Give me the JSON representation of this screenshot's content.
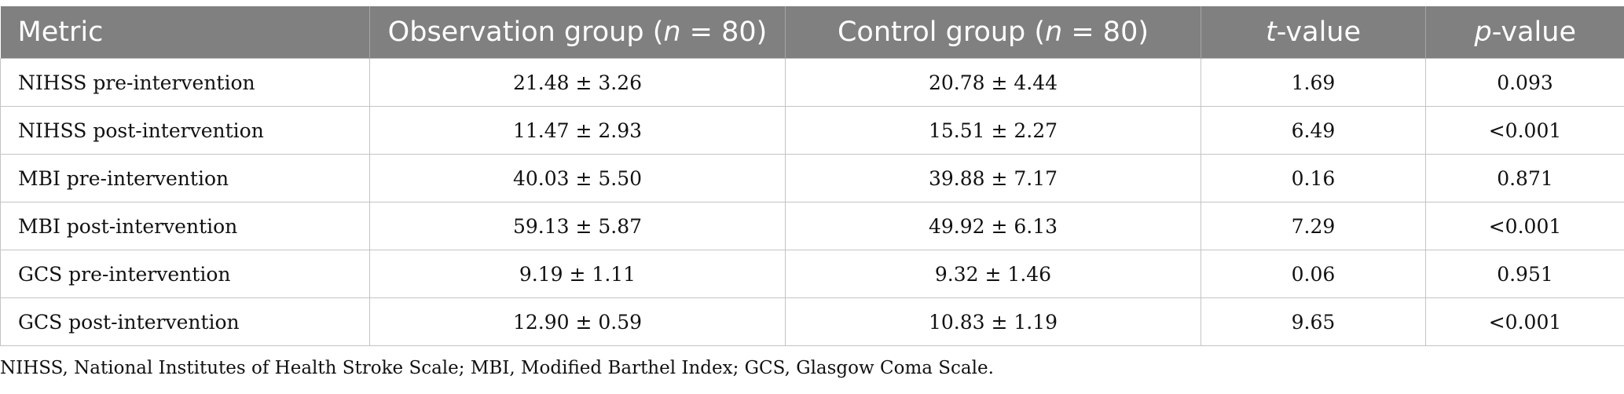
{
  "table": {
    "headers": [
      {
        "pre": "Metric",
        "italic": "",
        "post": ""
      },
      {
        "pre": "Observation group (",
        "italic": "n",
        "post": " = 80)"
      },
      {
        "pre": "Control group (",
        "italic": "n",
        "post": " = 80)"
      },
      {
        "pre": "",
        "italic": "t",
        "post": "-value"
      },
      {
        "pre": "",
        "italic": "p",
        "post": "-value"
      }
    ],
    "rows": [
      [
        "NIHSS pre-intervention",
        "21.48 ± 3.26",
        "20.78 ± 4.44",
        "1.69",
        "0.093"
      ],
      [
        "NIHSS post-intervention",
        "11.47 ± 2.93",
        "15.51 ± 2.27",
        "6.49",
        "<0.001"
      ],
      [
        "MBI pre-intervention",
        "40.03 ± 5.50",
        "39.88 ± 7.17",
        "0.16",
        "0.871"
      ],
      [
        "MBI post-intervention",
        "59.13 ± 5.87",
        "49.92 ± 6.13",
        "7.29",
        "<0.001"
      ],
      [
        "GCS pre-intervention",
        "9.19 ± 1.11",
        "9.32 ± 1.46",
        "0.06",
        "0.951"
      ],
      [
        "GCS post-intervention",
        "12.90 ± 0.59",
        "10.83 ± 1.19",
        "9.65",
        "<0.001"
      ]
    ]
  },
  "footnote": "NIHSS, National Institutes of Health Stroke Scale; MBI, Modified Barthel Index; GCS, Glasgow Coma Scale.",
  "colors": {
    "header_background": "#808080",
    "header_text": "#ffffff",
    "grid_line": "#c4c4c4",
    "body_text": "#111111"
  }
}
